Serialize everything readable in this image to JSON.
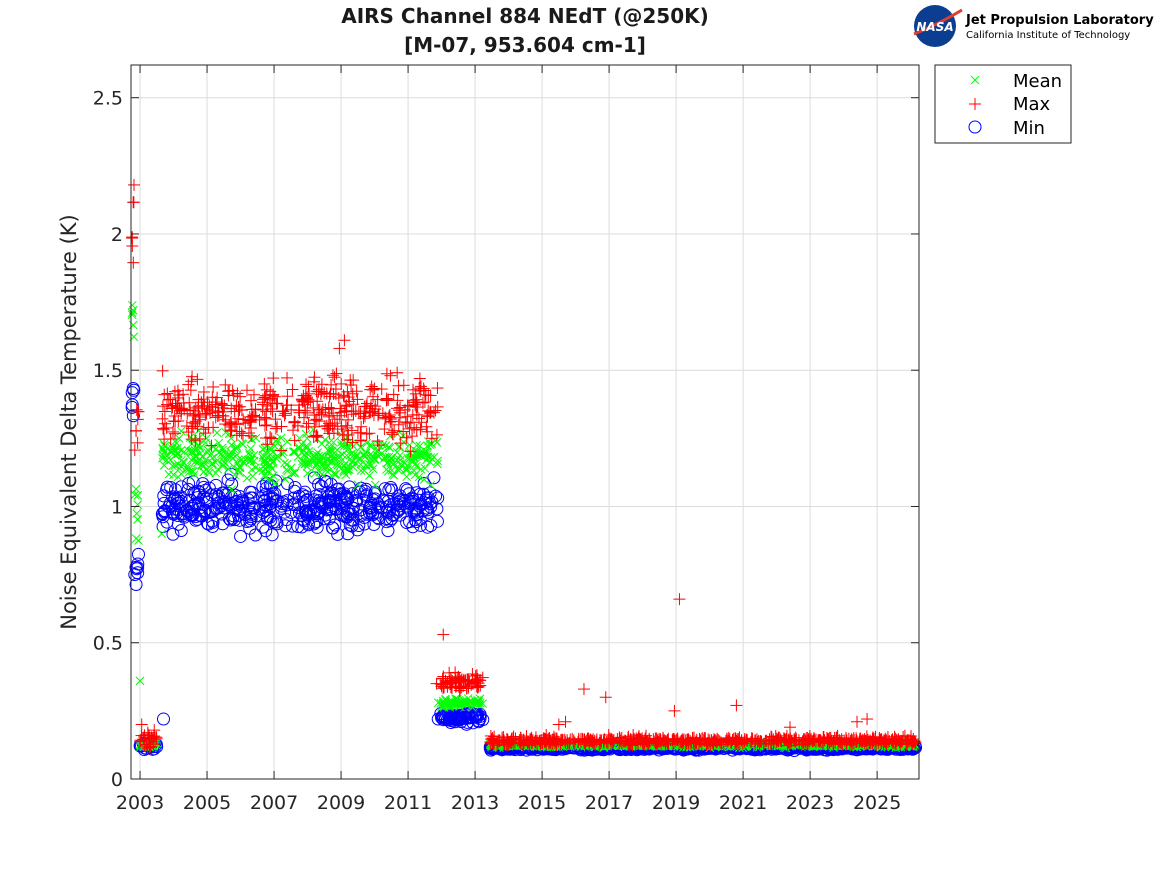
{
  "logo": {
    "org": "NASA",
    "line1": "Jet Propulsion Laboratory",
    "line2": "California Institute of Technology"
  },
  "chart_data": {
    "type": "scatter",
    "title": [
      "AIRS Channel 884 NEdT (@250K)",
      "[M-07, 953.604 cm-1]"
    ],
    "xlabel": "",
    "ylabel": "Noise Equivalent Delta Temperature (K)",
    "xlim": [
      2002.73,
      2026.25
    ],
    "ylim": [
      0,
      2.62
    ],
    "xticks": [
      2003,
      2005,
      2007,
      2009,
      2011,
      2013,
      2015,
      2017,
      2019,
      2021,
      2023,
      2025
    ],
    "xtick_labels": [
      "2003",
      "2005",
      "2007",
      "2009",
      "2011",
      "2013",
      "2015",
      "2017",
      "2019",
      "2021",
      "2023",
      "2025"
    ],
    "yticks": [
      0,
      0.5,
      1,
      1.5,
      2,
      2.5
    ],
    "ytick_labels": [
      "0",
      "0.5",
      "1",
      "1.5",
      "2",
      "2.5"
    ],
    "grid": true,
    "legend": {
      "position": "outside-top-right",
      "entries": [
        "Mean",
        "Max",
        "Min"
      ]
    },
    "series": [
      {
        "name": "Mean",
        "marker": "x",
        "color": "#00ff00"
      },
      {
        "name": "Max",
        "marker": "+",
        "color": "#ff0000"
      },
      {
        "name": "Min",
        "marker": "o",
        "color": "#0000ff"
      }
    ],
    "segments": [
      {
        "x": [
          2002.75,
          2002.82
        ],
        "mean": 1.69,
        "max": 2.02,
        "min": 1.38,
        "spread": [
          0.04,
          0.08,
          0.05
        ]
      },
      {
        "x": [
          2002.83,
          2002.98
        ],
        "mean": 1.0,
        "max": 1.28,
        "min": 0.76,
        "spread": [
          0.08,
          0.08,
          0.03
        ]
      },
      {
        "x": [
          2002.98,
          2003.5
        ],
        "mean": 0.125,
        "max": 0.145,
        "min": 0.12,
        "spread": [
          0.005,
          0.015,
          0.005
        ]
      },
      {
        "x": [
          2003.65,
          2011.9
        ],
        "mean": 1.18,
        "max": 1.35,
        "min": 1.0,
        "spread": [
          0.04,
          0.06,
          0.04
        ]
      },
      {
        "x": [
          2011.95,
          2013.25
        ],
        "mean": 0.28,
        "max": 0.36,
        "min": 0.225,
        "spread": [
          0.008,
          0.015,
          0.008
        ]
      },
      {
        "x": [
          2013.35,
          2026.15
        ],
        "mean": 0.125,
        "max": 0.14,
        "min": 0.115,
        "spread": [
          0.004,
          0.008,
          0.004
        ]
      }
    ],
    "outliers": {
      "Max": [
        [
          2002.82,
          2.18
        ],
        [
          2003.05,
          0.2
        ],
        [
          2011.85,
          0.35
        ],
        [
          2012.05,
          0.53
        ],
        [
          2015.5,
          0.2
        ],
        [
          2015.7,
          0.21
        ],
        [
          2016.25,
          0.33
        ],
        [
          2016.9,
          0.3
        ],
        [
          2018.95,
          0.25
        ],
        [
          2019.1,
          0.66
        ],
        [
          2020.8,
          0.27
        ],
        [
          2022.4,
          0.19
        ],
        [
          2024.4,
          0.21
        ],
        [
          2024.7,
          0.22
        ],
        [
          2008.95,
          1.58
        ],
        [
          2009.1,
          1.61
        ]
      ],
      "Mean": [
        [
          2003.0,
          0.36
        ],
        [
          2003.65,
          0.9
        ],
        [
          2011.9,
          0.28
        ]
      ],
      "Min": [
        [
          2003.7,
          0.22
        ],
        [
          2011.9,
          0.22
        ],
        [
          2006.0,
          0.89
        ],
        [
          2009.2,
          0.9
        ]
      ]
    }
  }
}
